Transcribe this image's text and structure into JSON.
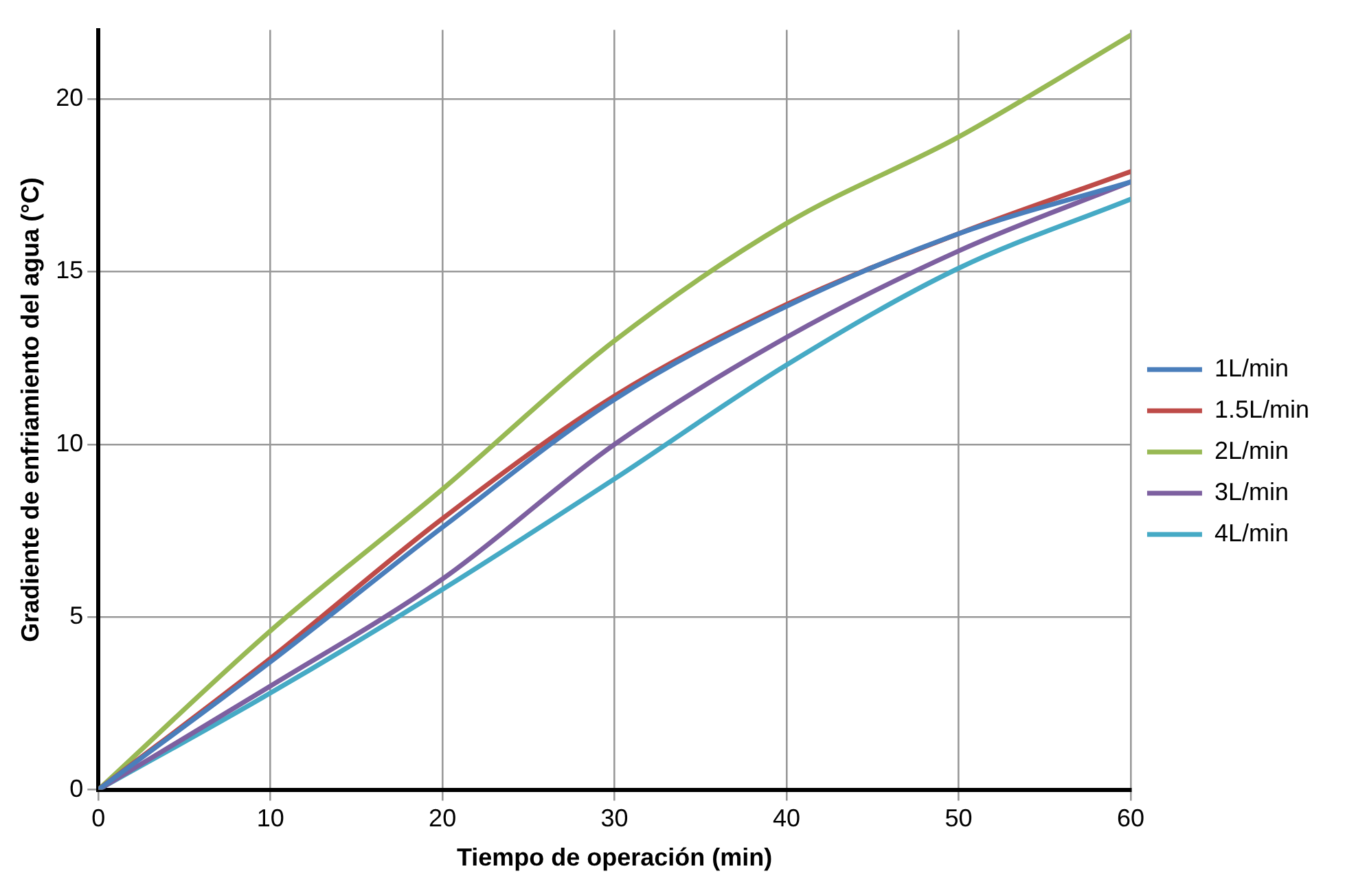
{
  "chart_data": {
    "type": "line",
    "xlabel": "Tiempo de operación (min)",
    "ylabel": "Gradiente de enfriamiento del agua (°C)",
    "x": [
      0,
      10,
      20,
      30,
      40,
      50,
      60
    ],
    "series": [
      {
        "name": "1L/min",
        "color": "#4a7ebb",
        "values": [
          0,
          3.7,
          7.6,
          11.3,
          14.0,
          16.1,
          17.6
        ]
      },
      {
        "name": "1.5L/min",
        "color": "#be4b48",
        "values": [
          0,
          3.8,
          7.85,
          11.4,
          14.05,
          16.1,
          17.9
        ]
      },
      {
        "name": "2L/min",
        "color": "#98b954",
        "values": [
          0,
          4.6,
          8.7,
          13.0,
          16.4,
          18.9,
          21.85
        ]
      },
      {
        "name": "3L/min",
        "color": "#7d60a0",
        "values": [
          0,
          3.0,
          6.1,
          10.0,
          13.1,
          15.6,
          17.6
        ]
      },
      {
        "name": "4L/min",
        "color": "#46aac5",
        "values": [
          0,
          2.8,
          5.8,
          9.0,
          12.3,
          15.1,
          17.1
        ]
      }
    ],
    "xlim": [
      0,
      60
    ],
    "xticks": [
      0,
      10,
      20,
      30,
      40,
      50,
      60
    ],
    "ylim": [
      0,
      22
    ],
    "yticks": [
      0,
      5,
      10,
      15,
      20
    ],
    "grid": true,
    "legend": "right",
    "marker": "none",
    "line_style": "solid"
  }
}
